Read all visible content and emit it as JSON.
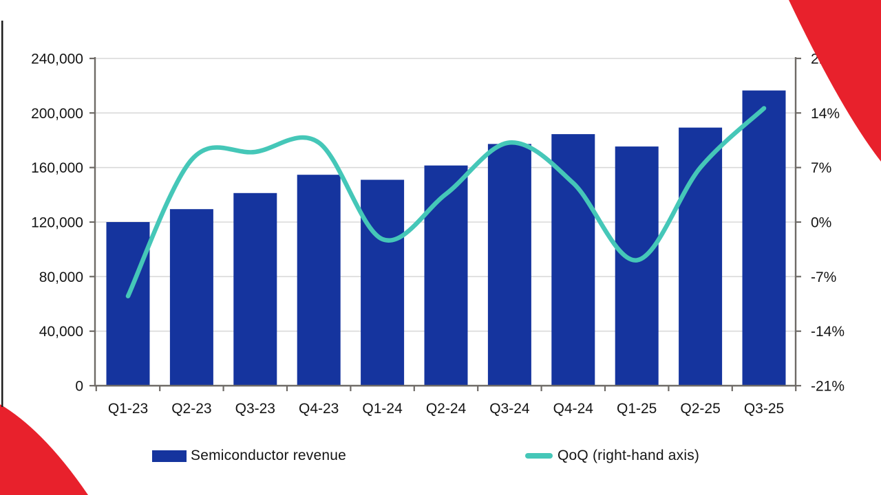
{
  "page": {
    "background_color": "#ffffff",
    "left_edge_line_color": "#1a1a1a",
    "corner_decor_color": "#e8212c"
  },
  "chart_data": {
    "type": "bar+line combo",
    "title": "",
    "categories": [
      "Q1-23",
      "Q2-23",
      "Q3-23",
      "Q4-23",
      "Q1-24",
      "Q2-24",
      "Q3-24",
      "Q4-24",
      "Q1-25",
      "Q2-25",
      "Q3-25"
    ],
    "series": [
      {
        "name": "Semiconductor revenue",
        "type": "bar",
        "axis": "left",
        "color": "#15349e",
        "values": [
          120000,
          129500,
          141300,
          154700,
          151000,
          161500,
          177300,
          184500,
          175400,
          189300,
          216500
        ]
      },
      {
        "name": "QoQ (right-hand axis)",
        "type": "line",
        "axis": "right",
        "color": "#45c7b8",
        "values": [
          -9.5,
          8.0,
          9.0,
          10.2,
          -2.2,
          3.6,
          10.2,
          5.0,
          -4.9,
          7.0,
          14.6
        ]
      }
    ],
    "left_axis": {
      "min": 0,
      "max": 240000,
      "tick_step": 40000,
      "tick_labels": [
        "0",
        "40,000",
        "80,000",
        "120,000",
        "160,000",
        "200,000",
        "240,000"
      ]
    },
    "right_axis": {
      "min": -21,
      "max": 21,
      "tick_step": 7,
      "tick_labels": [
        "-21%",
        "-14%",
        "-7%",
        "0%",
        "7%",
        "14%",
        "21%"
      ]
    },
    "grid": true,
    "grid_color": "#d9d9d9",
    "axis_color": "#6e6a66",
    "label_color": "#141414",
    "legend_position": "bottom"
  },
  "legend": {
    "items": [
      {
        "label": "Semiconductor revenue",
        "swatch": "bar",
        "color": "#15349e"
      },
      {
        "label": "QoQ (right-hand axis)",
        "swatch": "line",
        "color": "#45c7b8"
      }
    ]
  }
}
